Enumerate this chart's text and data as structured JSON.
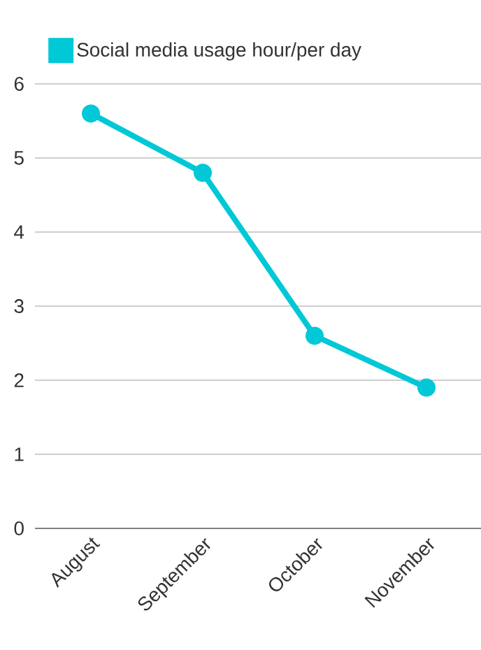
{
  "chart_data": {
    "type": "line",
    "categories": [
      "August",
      "September",
      "October",
      "November"
    ],
    "series": [
      {
        "name": "Social media usage hour/per day",
        "color": "#00c8d7",
        "values": [
          5.6,
          4.8,
          2.6,
          1.9
        ]
      }
    ],
    "ylim": [
      0,
      6
    ],
    "yticks": [
      0,
      1,
      2,
      3,
      4,
      5,
      6
    ],
    "grid": "y",
    "legend": "top",
    "marker": "circle",
    "line_style": "solid"
  }
}
